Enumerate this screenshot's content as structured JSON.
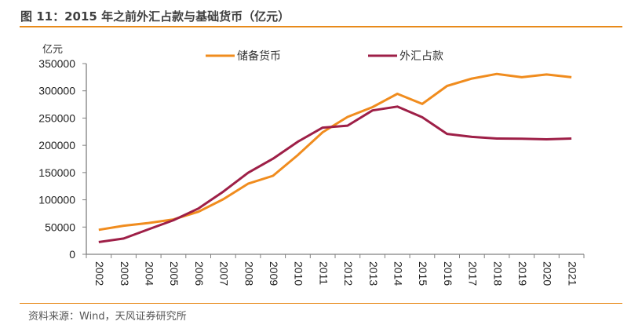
{
  "header": {
    "title": "图 11：2015 年之前外汇占款与基础货币（亿元）"
  },
  "footer": {
    "source": "资料来源：Wind，天风证券研究所"
  },
  "colors": {
    "accent_rule": "#E88A1A",
    "reserve_money": "#F08C1E",
    "fx_reserves": "#9E1F47",
    "axis": "#808080"
  },
  "chart_data": {
    "type": "line",
    "title": "2015 年之前外汇占款与基础货币（亿元）",
    "xlabel": "",
    "ylabel": "亿元",
    "ylim": [
      0,
      350000
    ],
    "yticks": [
      0,
      50000,
      100000,
      150000,
      200000,
      250000,
      300000,
      350000
    ],
    "ytick_labels": [
      "0",
      "50000",
      "100000",
      "150000",
      "200000",
      "250000",
      "300000",
      "350000"
    ],
    "grid": false,
    "legend_position": "top-center",
    "categories": [
      "2002",
      "2003",
      "2004",
      "2005",
      "2006",
      "2007",
      "2008",
      "2009",
      "2010",
      "2011",
      "2012",
      "2013",
      "2014",
      "2015",
      "2016",
      "2017",
      "2018",
      "2019",
      "2020",
      "2021"
    ],
    "series": [
      {
        "name": "储备货币",
        "color": "#F08C1E",
        "values": [
          45000,
          52500,
          57500,
          64000,
          78000,
          101000,
          129500,
          144000,
          182000,
          224000,
          252000,
          270000,
          294500,
          276000,
          309000,
          322500,
          331000,
          325000,
          330000,
          325000
        ]
      },
      {
        "name": "外汇占款",
        "color": "#9E1F47",
        "values": [
          22500,
          29000,
          46000,
          62500,
          84000,
          115000,
          149500,
          175500,
          206500,
          232500,
          236000,
          264000,
          271000,
          251500,
          221000,
          215500,
          212500,
          212000,
          211000,
          212500
        ]
      }
    ]
  }
}
